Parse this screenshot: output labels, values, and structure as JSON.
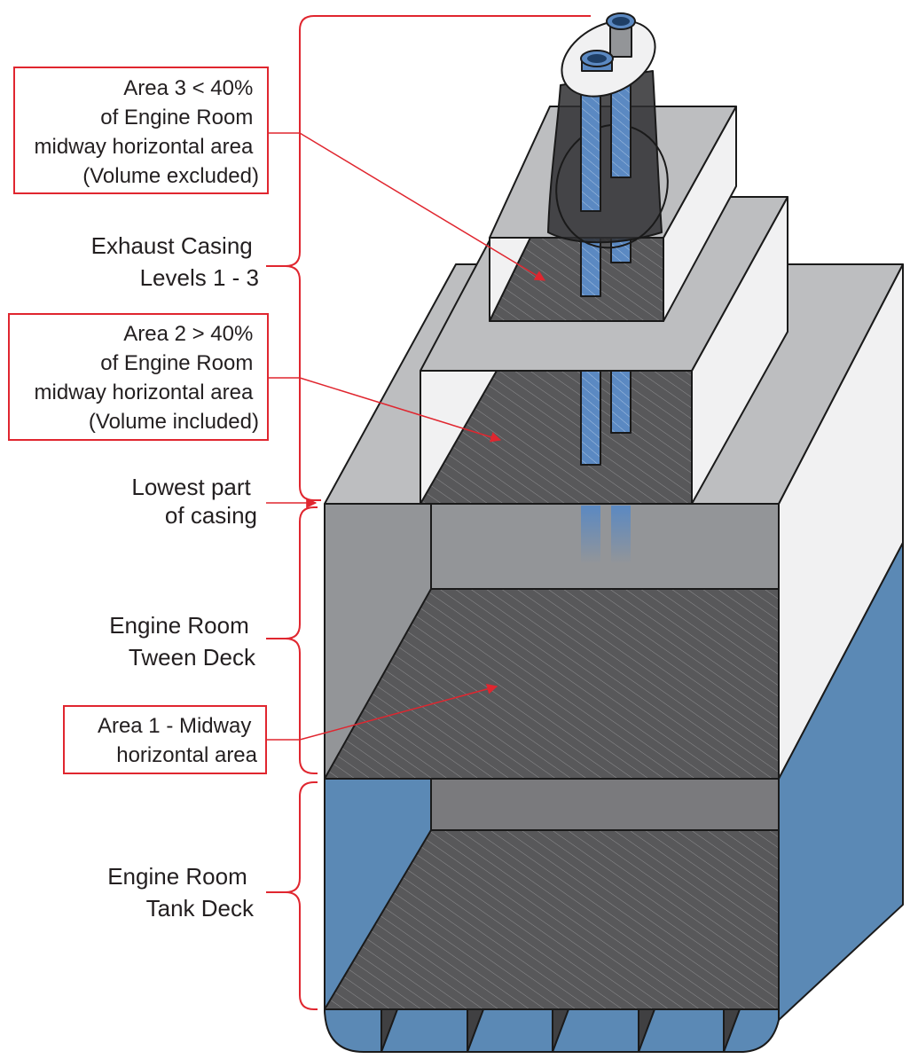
{
  "colors": {
    "accent_red": "#e0262f",
    "floor_dark": "#5a5a5c",
    "wall_gray": "#939598",
    "casing_light": "#bdbec0",
    "white_face": "#f1f1f2",
    "water_blue": "#5b89b5",
    "pipe_blue": "#5b89c2"
  },
  "labels": {
    "area3": [
      "Area 3 < 40%",
      "of Engine Room",
      "midway horizontal area",
      "(Volume excluded)"
    ],
    "exhaust": [
      "Exhaust Casing",
      "Levels 1 - 3"
    ],
    "area2": [
      "Area 2 > 40%",
      "of Engine Room",
      "midway horizontal area",
      "(Volume included)"
    ],
    "lowest": [
      "Lowest part",
      "of casing"
    ],
    "tween": [
      "Engine Room",
      "Tween Deck"
    ],
    "area1": [
      "Area 1 - Midway",
      "horizontal area"
    ],
    "tank": [
      "Engine Room",
      "Tank Deck"
    ]
  }
}
